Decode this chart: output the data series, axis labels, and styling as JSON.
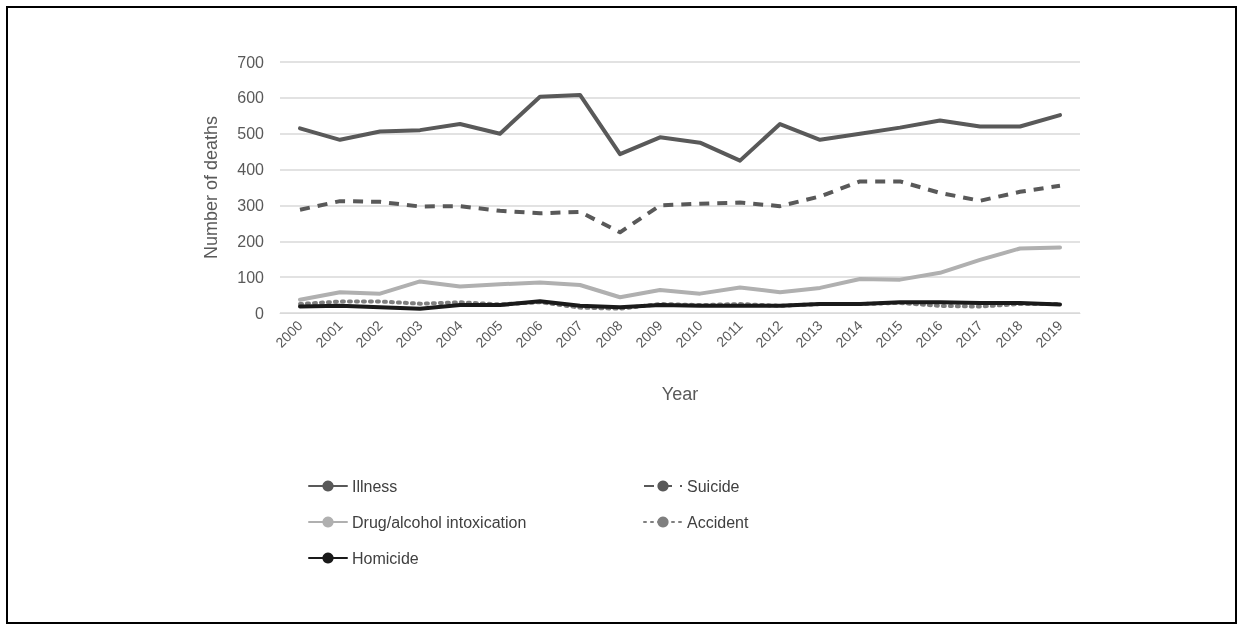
{
  "chart_data": {
    "type": "line",
    "xlabel": "Year",
    "ylabel": "Number of deaths",
    "categories": [
      "2000",
      "2001",
      "2002",
      "2003",
      "2004",
      "2005",
      "2006",
      "2007",
      "2008",
      "2009",
      "2010",
      "2011",
      "2012",
      "2013",
      "2014",
      "2015",
      "2016",
      "2017",
      "2018",
      "2019"
    ],
    "ylim": [
      0,
      700
    ],
    "yticks": [
      0,
      100,
      200,
      300,
      400,
      500,
      600,
      700
    ],
    "grid": "y",
    "legend": "bottom",
    "marker": "none",
    "series": [
      {
        "name": "Illness",
        "color": "#595959",
        "line_style": "solid",
        "values": [
          515,
          483,
          506,
          510,
          527,
          500,
          603,
          608,
          443,
          490,
          475,
          425,
          527,
          483,
          500,
          517,
          537,
          520,
          520,
          552
        ]
      },
      {
        "name": "Suicide",
        "color": "#595959",
        "line_style": "dashed",
        "values": [
          288,
          312,
          310,
          297,
          298,
          285,
          278,
          282,
          225,
          300,
          305,
          308,
          298,
          325,
          367,
          367,
          335,
          313,
          338,
          355
        ]
      },
      {
        "name": "Drug/alcohol intoxication",
        "color": "#b0b0b0",
        "line_style": "solid",
        "values": [
          37,
          58,
          54,
          88,
          74,
          80,
          85,
          78,
          44,
          64,
          54,
          71,
          58,
          70,
          95,
          93,
          112,
          148,
          180,
          183
        ]
      },
      {
        "name": "Accident",
        "color": "#7f7f7f",
        "line_style": "dotted",
        "values": [
          25,
          32,
          32,
          26,
          30,
          24,
          30,
          15,
          12,
          25,
          22,
          25,
          20,
          25,
          25,
          28,
          20,
          18,
          25,
          25
        ]
      },
      {
        "name": "Homicide",
        "color": "#1a1a1a",
        "line_style": "solid",
        "values": [
          18,
          20,
          16,
          12,
          22,
          22,
          33,
          20,
          16,
          22,
          20,
          20,
          20,
          25,
          25,
          30,
          30,
          28,
          28,
          24
        ]
      }
    ]
  }
}
